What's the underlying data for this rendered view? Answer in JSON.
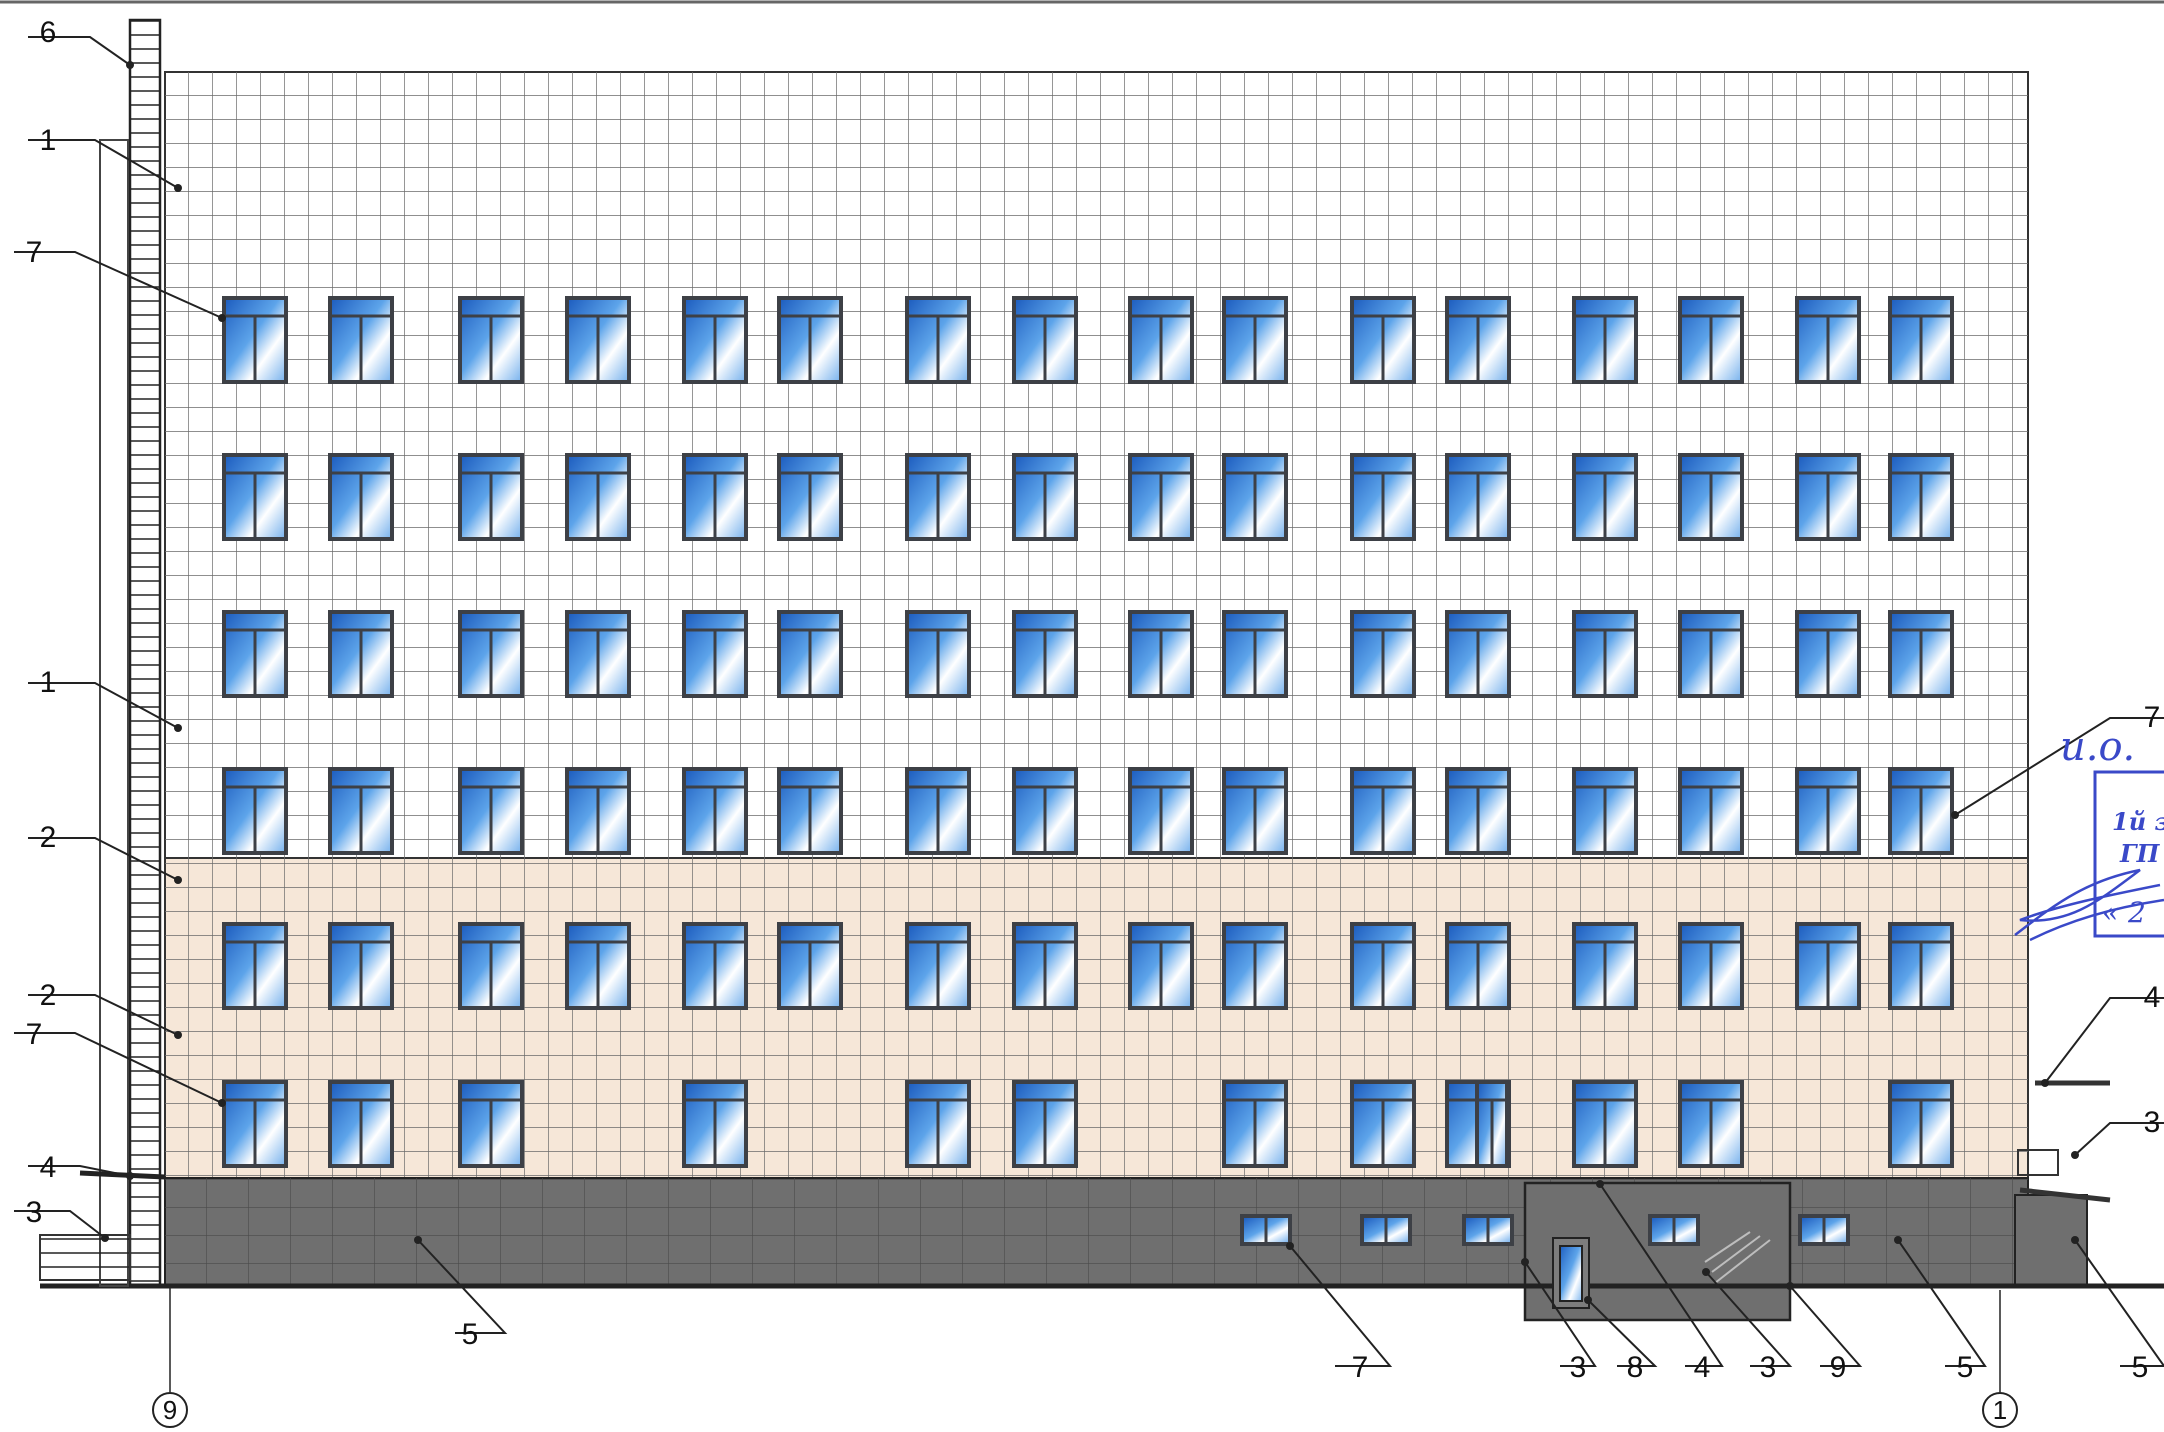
{
  "drawing": {
    "floors": 6,
    "window_columns_per_floor": 16,
    "colors": {
      "upper_facade": "#ffffff",
      "lower_facade": "#f6e7d8",
      "plinth": "#6f6f6f",
      "glazing": "#3d86d8",
      "frame": "#3d4046",
      "grid_line": "#5a5a5a",
      "stamp_ink": "#3a49c8"
    }
  },
  "callouts": {
    "left": [
      "6",
      "1",
      "7",
      "1",
      "2",
      "2",
      "7",
      "4",
      "3"
    ],
    "bottom": [
      "5",
      "7",
      "3",
      "8",
      "4",
      "3",
      "9",
      "5",
      "5"
    ],
    "right": [
      "7",
      "4",
      "3"
    ]
  },
  "axes": [
    "9",
    "1"
  ],
  "stamp": {
    "handwriting": "и.о.",
    "line1": "1й з",
    "line2": "ГП",
    "line3": "« 2"
  }
}
